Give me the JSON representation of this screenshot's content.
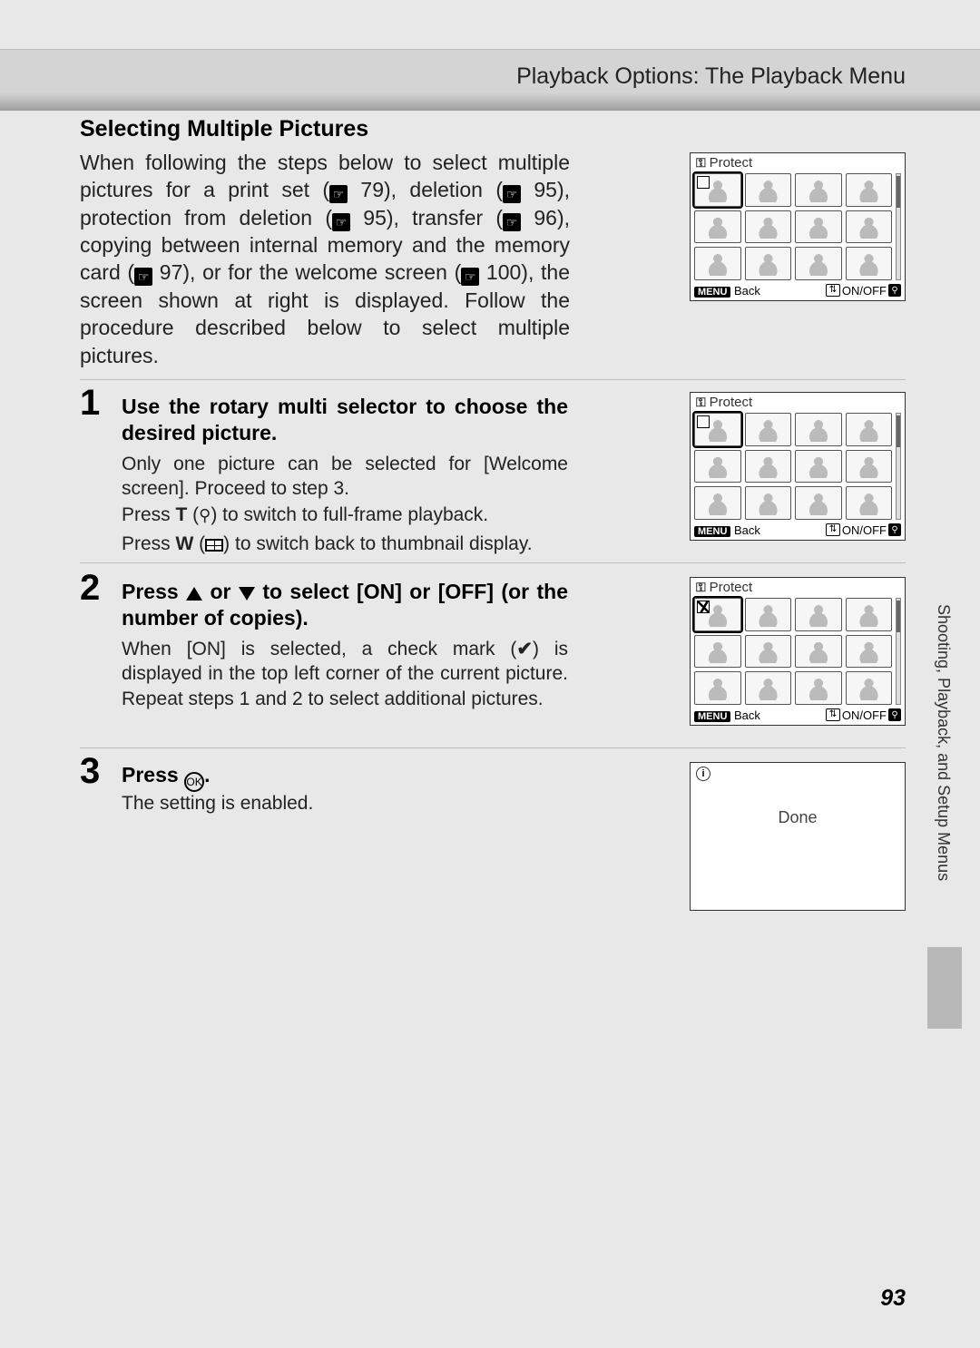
{
  "header": {
    "title": "Playback Options: The Playback Menu"
  },
  "section_title": "Selecting Multiple Pictures",
  "intro": {
    "t1": "When following the steps below to select multiple pictures for a print set (",
    "r1": "79",
    "t2": "), deletion (",
    "r2": "95",
    "t3": "), protection from deletion (",
    "r3": "95",
    "t4": "), transfer (",
    "r4": "96",
    "t5": "), copying between internal memory and the memory card (",
    "r5": "97",
    "t6": "), or for the welcome screen (",
    "r6": "100",
    "t7": "), the screen shown at right is displayed. Follow the procedure described below to select multiple pictures."
  },
  "steps": {
    "s1": {
      "num": "1",
      "head": "Use the rotary multi selector to choose the desired picture.",
      "p1": "Only one picture can be selected for [Welcome screen]. Proceed to step 3.",
      "p2a": "Press ",
      "p2T": "T",
      "p2b": " (",
      "p2c": ") to switch to full-frame playback.",
      "p3a": "Press ",
      "p3W": "W",
      "p3b": " (",
      "p3c": ") to switch back to thumbnail display."
    },
    "s2": {
      "num": "2",
      "h1": "Press ",
      "h2": " or ",
      "h3": " to select [ON] or [OFF] (or the number of copies).",
      "p1a": "When [ON] is selected, a check mark (",
      "p1b": ") is displayed in the top left corner of the current picture. Repeat steps 1 and 2 to select additional pictures."
    },
    "s3": {
      "num": "3",
      "h1": "Press ",
      "h2": ".",
      "ok": "OK",
      "body": "The setting is enabled."
    }
  },
  "lcd": {
    "protect_title": "Protect",
    "menu": "MENU",
    "back": "Back",
    "onoff": "ON/OFF",
    "info": "i",
    "done": "Done"
  },
  "side_label": "Shooting, Playback, and Setup Menus",
  "page_number": "93"
}
